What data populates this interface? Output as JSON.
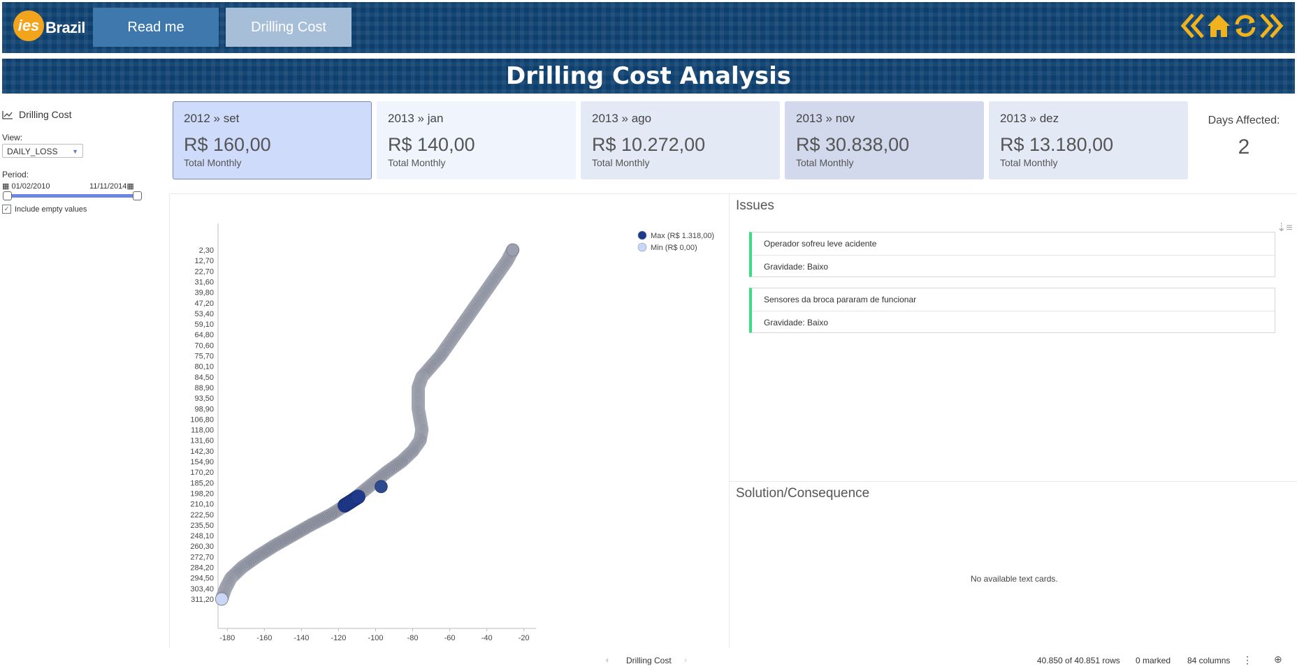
{
  "header": {
    "logo_text": "Brazil",
    "logo_badge": "ies",
    "nav": [
      {
        "label": "Read me"
      },
      {
        "label": "Drilling Cost"
      }
    ],
    "title": "Drilling Cost Analysis",
    "icons": [
      "double-chevron-left-icon",
      "home-icon",
      "refresh-icon",
      "double-chevron-right-icon"
    ],
    "accent_color": "#f0b21d"
  },
  "sidebar": {
    "title": "Drilling Cost",
    "view_label": "View:",
    "view_value": "DAILY_LOSS",
    "period_label": "Period:",
    "period_start": "01/02/2010",
    "period_end": "11/11/2014",
    "include_empty_label": "Include empty values",
    "include_empty_checked": true
  },
  "kpis": [
    {
      "period": "2012 » set",
      "value": "R$ 160,00",
      "sub": "Total Monthly",
      "bg": "#cfdbfa",
      "border": "#7a8ab0"
    },
    {
      "period": "2013 » jan",
      "value": "R$ 140,00",
      "sub": "Total Monthly",
      "bg": "#f0f4fd",
      "border": "#f0f4fd"
    },
    {
      "period": "2013 » ago",
      "value": "R$ 10.272,00",
      "sub": "Total Monthly",
      "bg": "#e4e9f6",
      "border": "#e4e9f6"
    },
    {
      "period": "2013 » nov",
      "value": "R$ 30.838,00",
      "sub": "Total Monthly",
      "bg": "#d3d9ec",
      "border": "#d3d9ec"
    },
    {
      "period": "2013 » dez",
      "value": "R$ 13.180,00",
      "sub": "Total Monthly",
      "bg": "#e4e9f6",
      "border": "#e4e9f6"
    }
  ],
  "days_affected": {
    "label": "Days Affected:",
    "value": "2"
  },
  "chart_data": {
    "type": "scatter",
    "title": "",
    "xlabel": "",
    "ylabel": "",
    "xlim": [
      -185,
      -18
    ],
    "x_ticks": [
      "-180",
      "-160",
      "-140",
      "-120",
      "-100",
      "-80",
      "-60",
      "-40",
      "-20"
    ],
    "y_ticks": [
      "2,30",
      "12,70",
      "22,70",
      "31,60",
      "39,80",
      "47,20",
      "53,40",
      "59,10",
      "64,80",
      "70,60",
      "75,70",
      "80,10",
      "84,50",
      "88,90",
      "93,50",
      "98,90",
      "106,80",
      "118,00",
      "131,60",
      "142,30",
      "154,90",
      "170,20",
      "185,20",
      "198,20",
      "210,10",
      "222,50",
      "235,50",
      "248,10",
      "260,30",
      "272,70",
      "284,20",
      "294,50",
      "303,40",
      "311,20"
    ],
    "y_reversed": true,
    "legend": [
      {
        "label": "Max (R$ 1.318,00)",
        "color": "#1f3a8a"
      },
      {
        "label": "Min (R$ 0,00)",
        "color": "#c9d6f5"
      }
    ],
    "legend_position": "top-right",
    "point_color": "#7d8190",
    "path": [
      [
        -26,
        2.3
      ],
      [
        -29,
        12.7
      ],
      [
        -33,
        22.7
      ],
      [
        -37,
        31.6
      ],
      [
        -41,
        39.8
      ],
      [
        -45,
        47.2
      ],
      [
        -49,
        53.4
      ],
      [
        -53,
        59.1
      ],
      [
        -57,
        64.8
      ],
      [
        -61,
        70.6
      ],
      [
        -65,
        75.7
      ],
      [
        -70,
        80.1
      ],
      [
        -75,
        84.5
      ],
      [
        -77,
        88.9
      ],
      [
        -77,
        93.5
      ],
      [
        -77,
        98.9
      ],
      [
        -76,
        106.8
      ],
      [
        -75,
        118.0
      ],
      [
        -76,
        131.6
      ],
      [
        -80,
        142.3
      ],
      [
        -86,
        154.9
      ],
      [
        -94,
        170.2
      ],
      [
        -101,
        185.2
      ],
      [
        -108,
        198.2
      ],
      [
        -115,
        210.1
      ],
      [
        -124,
        222.5
      ],
      [
        -135,
        235.5
      ],
      [
        -145,
        248.1
      ],
      [
        -155,
        260.3
      ],
      [
        -164,
        272.7
      ],
      [
        -172,
        284.2
      ],
      [
        -178,
        294.5
      ],
      [
        -181,
        303.4
      ],
      [
        -183,
        311.2
      ]
    ],
    "highlights": [
      {
        "x": -113,
        "y": 207,
        "level": "max"
      },
      {
        "x": -97,
        "y": 190,
        "level": "high"
      },
      {
        "x": -26,
        "y": 2.3,
        "level": "light"
      },
      {
        "x": -183,
        "y": 311.2,
        "level": "min"
      }
    ]
  },
  "issues": {
    "title": "Issues",
    "cards": [
      {
        "title": "Operador sofreu leve acidente",
        "severity": "Gravidade: Baixo"
      },
      {
        "title": "Sensores da broca pararam de funcionar",
        "severity": "Gravidade: Baixo"
      }
    ]
  },
  "solution": {
    "title": "Solution/Consequence",
    "empty_text": "No available text cards."
  },
  "status_bar": {
    "page_tab": "Drilling Cost",
    "rows": "40.850 of 40.851 rows",
    "marked": "0 marked",
    "columns": "84 columns"
  }
}
